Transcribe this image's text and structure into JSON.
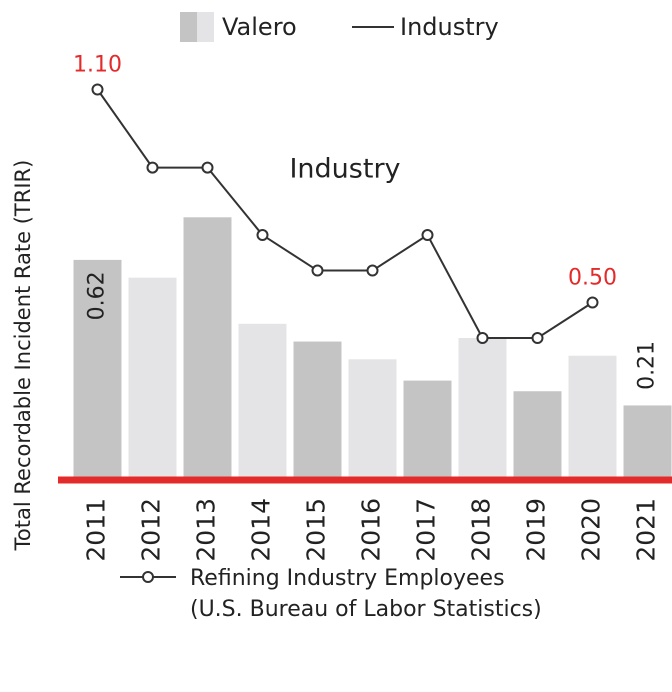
{
  "chart_data": {
    "type": "bar",
    "y_label": "Total Recordable Incident Rate (TRIR)",
    "annotation": "Industry",
    "categories": [
      "2011",
      "2012",
      "2013",
      "2014",
      "2015",
      "2016",
      "2017",
      "2018",
      "2019",
      "2020",
      "2021"
    ],
    "ylim": [
      0,
      1.2
    ],
    "series": [
      {
        "name": "Valero",
        "type": "bar",
        "colors": [
          "#c4c4c4",
          "#e4e4e6",
          "#c4c4c4",
          "#e4e4e6",
          "#c4c4c4",
          "#e4e4e6",
          "#c4c4c4",
          "#e4e4e6",
          "#c4c4c4",
          "#e4e4e6",
          "#c4c4c4"
        ],
        "values": [
          0.62,
          0.57,
          0.74,
          0.44,
          0.39,
          0.34,
          0.28,
          0.4,
          0.25,
          0.35,
          0.21
        ],
        "value_labels": [
          "0.62",
          null,
          null,
          null,
          null,
          null,
          null,
          null,
          null,
          null,
          "0.21"
        ]
      },
      {
        "name": "Industry",
        "type": "line",
        "color": "#333333",
        "values": [
          1.1,
          0.88,
          0.88,
          0.69,
          0.59,
          0.59,
          0.69,
          0.4,
          0.4,
          0.5,
          null
        ],
        "value_labels": [
          "1.10",
          null,
          null,
          null,
          null,
          null,
          null,
          null,
          null,
          "0.50",
          null
        ],
        "label_color": "#e32b2b"
      }
    ],
    "baseline_color": "#e32b2b",
    "legend_note": [
      "Refining Industry Employees",
      "(U.S. Bureau of Labor Statistics)"
    ]
  }
}
